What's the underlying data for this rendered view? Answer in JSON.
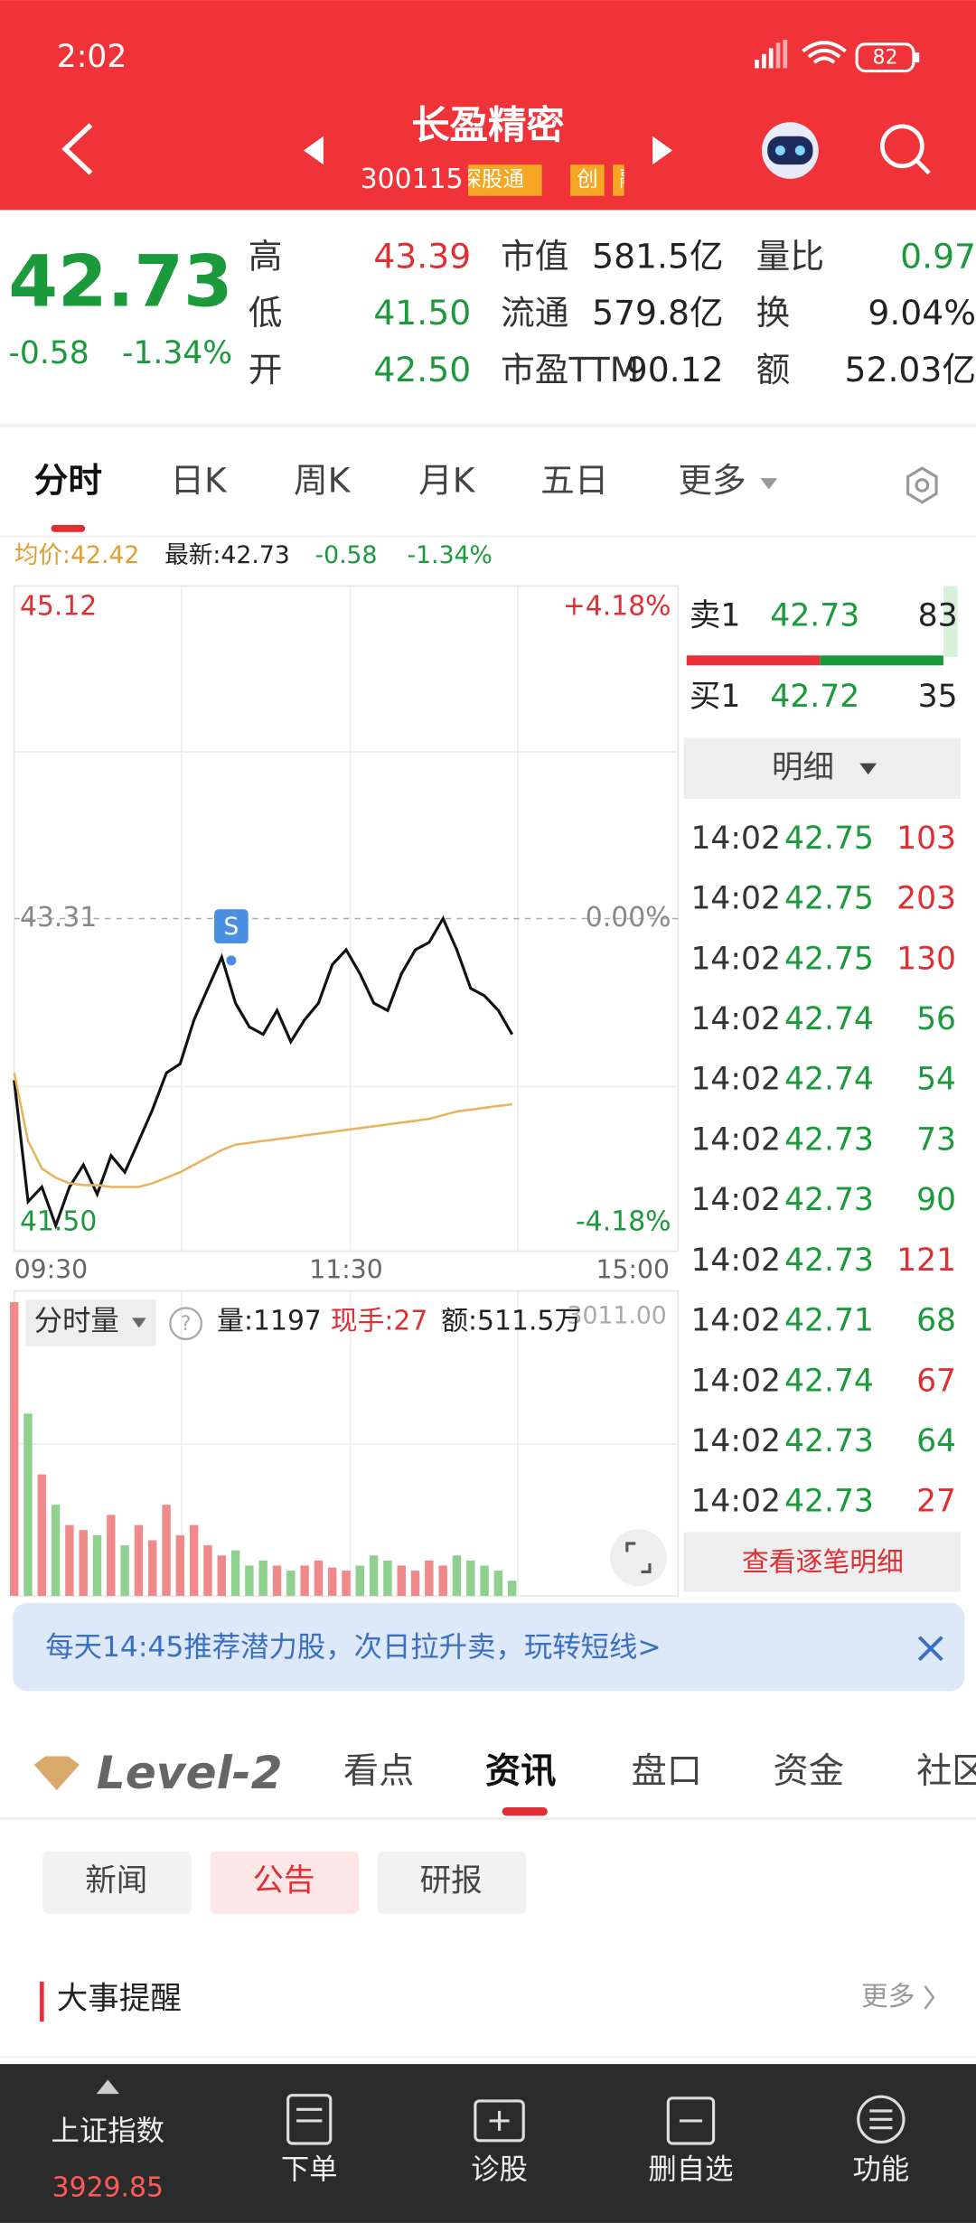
{
  "status_bar": {
    "time": "2:02",
    "battery": "82"
  },
  "header": {
    "title": "长盈精密",
    "code": "300115",
    "tags": [
      "深股通",
      "创",
      "融"
    ]
  },
  "quote": {
    "price": "42.73",
    "change": "-0.58",
    "change_pct": "-1.34%",
    "stats": [
      [
        {
          "label": "高",
          "value": "43.39",
          "color": "#e02f33"
        },
        {
          "label": "低",
          "value": "41.50",
          "color": "#1a9a3a"
        },
        {
          "label": "开",
          "value": "42.50",
          "color": "#1a9a3a"
        }
      ],
      [
        {
          "label": "市值",
          "value": "581.5亿",
          "color": "#222222"
        },
        {
          "label": "流通",
          "value": "579.8亿",
          "color": "#222222"
        },
        {
          "label": "市盈TTM",
          "value": "90.12",
          "color": "#222222"
        }
      ],
      [
        {
          "label": "量比",
          "value": "0.97",
          "color": "#1a9a3a"
        },
        {
          "label": "换",
          "value": "9.04%",
          "color": "#222222"
        },
        {
          "label": "额",
          "value": "52.03亿",
          "color": "#222222"
        }
      ]
    ]
  },
  "tabs": {
    "items": [
      "分时",
      "日K",
      "周K",
      "月K",
      "五日",
      "更多"
    ],
    "active": 0
  },
  "info_bar": {
    "avg": "均价:42.42",
    "latest": "最新:42.73",
    "change": "-0.58",
    "change_pct": "-1.34%"
  },
  "chart_data": [
    {
      "type": "line",
      "ylim": [
        41.5,
        45.12
      ],
      "yticks": [
        {
          "value": 41.5,
          "label": "41.50"
        },
        43.31,
        45.12
      ],
      "pct_labels": [
        "-4.18%",
        "0.00%",
        "+4.18%"
      ],
      "x_labels": [
        "09:30",
        "11:30",
        "15:00"
      ],
      "marker": "S",
      "series": [
        {
          "color": "#111111",
          "values": [
            42.43,
            41.77,
            41.85,
            41.64,
            41.85,
            41.97,
            41.81,
            42.02,
            41.93,
            42.1,
            42.27,
            42.47,
            42.52,
            42.76,
            42.93,
            43.1,
            42.85,
            42.72,
            42.68,
            42.81,
            42.64,
            42.76,
            42.85,
            43.06,
            43.14,
            43.01,
            42.85,
            42.81,
            43.01,
            43.14,
            43.18,
            43.31,
            43.14,
            42.93,
            42.89,
            42.81,
            42.68,
            null,
            null,
            null,
            null,
            null,
            null,
            null,
            null,
            null,
            null,
            null,
            null
          ]
        },
        {
          "color": "#eab25a",
          "values": [
            42.47,
            42.1,
            41.95,
            41.9,
            41.87,
            41.86,
            41.86,
            41.85,
            41.85,
            41.85,
            41.87,
            41.9,
            41.93,
            41.97,
            42.01,
            42.05,
            42.08,
            42.09,
            42.1,
            42.11,
            42.12,
            42.13,
            42.14,
            42.15,
            42.16,
            42.17,
            42.18,
            42.19,
            42.2,
            42.21,
            42.22,
            42.24,
            42.26,
            42.27,
            42.28,
            42.29,
            42.3,
            null,
            null,
            null,
            null,
            null,
            null,
            null,
            null,
            null,
            null,
            null,
            null
          ]
        }
      ]
    },
    {
      "type": "bar",
      "label": "分时量",
      "ylim": [
        0,
        3011
      ],
      "yticks": [
        {
          "value": 3011,
          "label": "3011.00"
        }
      ],
      "readouts": [
        "量:1197",
        "现手:27",
        "额:511.5万"
      ],
      "values": [
        2900,
        1800,
        1200,
        900,
        700,
        650,
        600,
        800,
        500,
        700,
        550,
        900,
        600,
        700,
        500,
        400,
        450,
        300,
        350,
        300,
        250,
        300,
        350,
        280,
        250,
        300,
        400,
        350,
        300,
        250,
        350,
        300,
        400,
        350,
        300,
        250,
        150,
        null,
        null,
        null,
        null,
        null,
        null,
        null,
        null,
        null,
        null,
        null,
        null
      ]
    }
  ],
  "order_book": {
    "asks": [
      {
        "label": "卖1",
        "price": "42.73",
        "volume": "83"
      }
    ],
    "bids": [
      {
        "label": "买1",
        "price": "42.72",
        "volume": "35"
      }
    ],
    "detail_button": "明细",
    "ticks": [
      {
        "time": "14:02",
        "price": "42.75",
        "volume": "103",
        "color": "#e02f33"
      },
      {
        "time": "14:02",
        "price": "42.75",
        "volume": "203",
        "color": "#e02f33"
      },
      {
        "time": "14:02",
        "price": "42.75",
        "volume": "130",
        "color": "#e02f33"
      },
      {
        "time": "14:02",
        "price": "42.74",
        "volume": "56",
        "color": "#1a9a3a"
      },
      {
        "time": "14:02",
        "price": "42.74",
        "volume": "54",
        "color": "#1a9a3a"
      },
      {
        "time": "14:02",
        "price": "42.73",
        "volume": "73",
        "color": "#1a9a3a"
      },
      {
        "time": "14:02",
        "price": "42.73",
        "volume": "90",
        "color": "#1a9a3a"
      },
      {
        "time": "14:02",
        "price": "42.73",
        "volume": "121",
        "color": "#e02f33"
      },
      {
        "time": "14:02",
        "price": "42.71",
        "volume": "68",
        "color": "#1a9a3a"
      },
      {
        "time": "14:02",
        "price": "42.74",
        "volume": "67",
        "color": "#e02f33"
      },
      {
        "time": "14:02",
        "price": "42.73",
        "volume": "64",
        "color": "#1a9a3a"
      },
      {
        "time": "14:02",
        "price": "42.73",
        "volume": "27",
        "color": "#e02f33"
      }
    ],
    "more": "查看逐笔明细"
  },
  "banner": "每天14:45推荐潜力股，次日拉升卖，玩转短线>",
  "section_tabs": {
    "brand": "Level-2",
    "items": [
      "看点",
      "资讯",
      "盘口",
      "资金",
      "社区"
    ],
    "active": 1
  },
  "news_tabs": {
    "items": [
      "新闻",
      "公告",
      "研报"
    ],
    "active": 1
  },
  "events": {
    "title": "大事提醒",
    "more": "更多"
  },
  "bottom_nav": {
    "index_name": "上证指数",
    "index_value": "3929.85",
    "items": [
      "下单",
      "诊股",
      "删自选",
      "功能"
    ]
  }
}
